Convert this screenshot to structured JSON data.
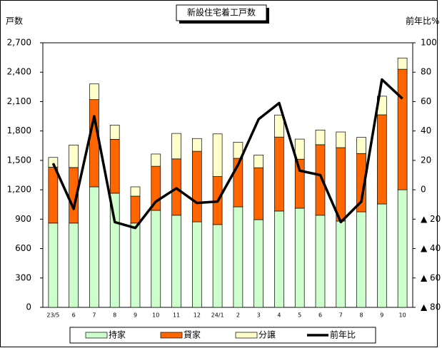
{
  "chart_data": {
    "type": "bar",
    "title": "新設住宅着工戸数",
    "y_label": "戸数",
    "y2_label": "前年比%",
    "categories": [
      "23/5",
      "6",
      "7",
      "8",
      "9",
      "10",
      "11",
      "12",
      "24/1",
      "2",
      "3",
      "4",
      "5",
      "6",
      "7",
      "8",
      "9",
      "10"
    ],
    "series": [
      {
        "name": "持家",
        "color": "#ccffcc",
        "values": [
          860,
          860,
          1230,
          1165,
          860,
          990,
          940,
          873,
          845,
          1026,
          895,
          983,
          1012,
          940,
          880,
          975,
          1055,
          1200
        ]
      },
      {
        "name": "貸家",
        "color": "#ff6600",
        "values": [
          570,
          567,
          890,
          550,
          275,
          450,
          575,
          720,
          490,
          495,
          530,
          755,
          500,
          720,
          750,
          595,
          910,
          1230
        ]
      },
      {
        "name": "分譲",
        "color": "#ffffcc",
        "values": [
          100,
          230,
          160,
          145,
          95,
          125,
          260,
          130,
          435,
          165,
          130,
          225,
          205,
          150,
          160,
          165,
          190,
          115
        ]
      },
      {
        "name": "前年比",
        "color": "#000000",
        "type": "line",
        "axis": "y2",
        "values": [
          18,
          -13,
          50,
          -22,
          -26,
          -8,
          1,
          -9,
          -8,
          17,
          48,
          59,
          13,
          10,
          -22,
          -8,
          75,
          62
        ]
      }
    ],
    "stacked": true,
    "ylim": [
      0,
      2700
    ],
    "yticks": [
      0,
      300,
      600,
      900,
      {
        "value": 1200,
        "label": "1,200"
      },
      {
        "value": 1500,
        "label": "1,500"
      },
      {
        "value": 1800,
        "label": "1,800"
      },
      {
        "value": 2100,
        "label": "2,100"
      },
      {
        "value": 2400,
        "label": "2,400"
      },
      {
        "value": 2700,
        "label": "2,700"
      }
    ],
    "y2lim": [
      -80,
      100
    ],
    "y2ticks": [
      {
        "value": -80,
        "label": "▲ 80"
      },
      {
        "value": -60,
        "label": "▲ 60"
      },
      {
        "value": -40,
        "label": "▲ 40"
      },
      {
        "value": -20,
        "label": "▲ 20"
      },
      0,
      20,
      40,
      60,
      80,
      100
    ],
    "grid": false,
    "legend": "bottom"
  }
}
